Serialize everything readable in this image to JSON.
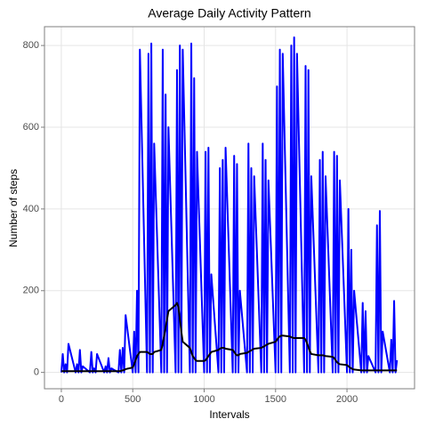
{
  "chart_data": {
    "type": "line",
    "title": "Average Daily Activity Pattern",
    "x_label": "Intervals",
    "y_label": "Number of steps",
    "x": [
      0,
      10,
      20,
      30,
      40,
      50,
      100,
      110,
      120,
      130,
      140,
      150,
      200,
      210,
      220,
      230,
      240,
      250,
      300,
      310,
      320,
      330,
      340,
      350,
      400,
      410,
      420,
      430,
      440,
      450,
      500,
      510,
      520,
      530,
      540,
      550,
      600,
      610,
      620,
      630,
      640,
      650,
      700,
      710,
      720,
      730,
      740,
      750,
      800,
      810,
      820,
      830,
      840,
      850,
      900,
      910,
      920,
      930,
      940,
      950,
      1000,
      1010,
      1020,
      1030,
      1040,
      1050,
      1100,
      1110,
      1120,
      1130,
      1140,
      1150,
      1200,
      1210,
      1220,
      1230,
      1240,
      1250,
      1300,
      1310,
      1320,
      1330,
      1340,
      1350,
      1400,
      1410,
      1420,
      1430,
      1440,
      1450,
      1500,
      1510,
      1520,
      1530,
      1540,
      1550,
      1600,
      1610,
      1620,
      1630,
      1640,
      1650,
      1700,
      1710,
      1720,
      1730,
      1740,
      1750,
      1800,
      1810,
      1820,
      1830,
      1840,
      1850,
      1900,
      1910,
      1920,
      1930,
      1940,
      1950,
      2000,
      2010,
      2020,
      2030,
      2040,
      2050,
      2100,
      2110,
      2120,
      2130,
      2140,
      2150,
      2200,
      2210,
      2220,
      2230,
      2240,
      2250,
      2300,
      2310,
      2320,
      2330,
      2340,
      2350
    ],
    "series": [
      {
        "color": "#0000ff",
        "values": [
          0,
          45,
          0,
          20,
          0,
          70,
          0,
          20,
          0,
          55,
          0,
          15,
          0,
          50,
          0,
          10,
          0,
          45,
          0,
          15,
          0,
          35,
          0,
          10,
          0,
          55,
          0,
          60,
          0,
          140,
          0,
          100,
          0,
          200,
          0,
          790,
          0,
          780,
          0,
          805,
          0,
          560,
          0,
          790,
          0,
          680,
          0,
          600,
          0,
          740,
          0,
          800,
          0,
          790,
          0,
          805,
          0,
          720,
          0,
          540,
          0,
          540,
          0,
          550,
          0,
          240,
          0,
          500,
          0,
          520,
          0,
          550,
          0,
          530,
          0,
          510,
          0,
          200,
          0,
          560,
          0,
          500,
          0,
          480,
          0,
          560,
          0,
          520,
          0,
          470,
          0,
          700,
          0,
          790,
          0,
          780,
          0,
          800,
          0,
          820,
          0,
          780,
          0,
          750,
          0,
          740,
          0,
          480,
          0,
          520,
          0,
          540,
          0,
          480,
          0,
          540,
          0,
          530,
          0,
          470,
          0,
          400,
          0,
          300,
          0,
          200,
          0,
          170,
          0,
          150,
          0,
          40,
          0,
          360,
          0,
          395,
          0,
          100,
          0,
          80,
          0,
          175,
          0,
          30
        ]
      },
      {
        "color": "#000000",
        "values": [
          3,
          3,
          3,
          3,
          3,
          3,
          3,
          3,
          3,
          3,
          3,
          3,
          3,
          3,
          3,
          3,
          3,
          3,
          3,
          3,
          3,
          3,
          3,
          3,
          3,
          3,
          4,
          5,
          6,
          8,
          12,
          20,
          30,
          40,
          45,
          50,
          50,
          48,
          45,
          45,
          45,
          50,
          55,
          70,
          90,
          110,
          130,
          150,
          165,
          170,
          160,
          130,
          100,
          75,
          60,
          50,
          40,
          35,
          30,
          28,
          28,
          30,
          35,
          40,
          45,
          50,
          55,
          58,
          60,
          60,
          60,
          58,
          55,
          50,
          45,
          42,
          42,
          45,
          48,
          50,
          52,
          54,
          56,
          58,
          60,
          62,
          64,
          66,
          68,
          70,
          75,
          80,
          85,
          88,
          90,
          90,
          88,
          86,
          85,
          84,
          84,
          84,
          84,
          80,
          72,
          62,
          52,
          45,
          42,
          42,
          42,
          42,
          41,
          40,
          38,
          35,
          30,
          25,
          22,
          20,
          18,
          15,
          12,
          10,
          8,
          7,
          5,
          5,
          5,
          5,
          5,
          5,
          5,
          5,
          5,
          5,
          5,
          5,
          5,
          5,
          5,
          5,
          5,
          5
        ]
      }
    ],
    "xlim": [
      -118,
      2473
    ],
    "xticks": [
      0,
      500,
      1000,
      1500,
      2000
    ],
    "ylim": [
      -40,
      846
    ],
    "yticks": [
      0,
      200,
      400,
      600,
      800
    ],
    "grid": true
  }
}
